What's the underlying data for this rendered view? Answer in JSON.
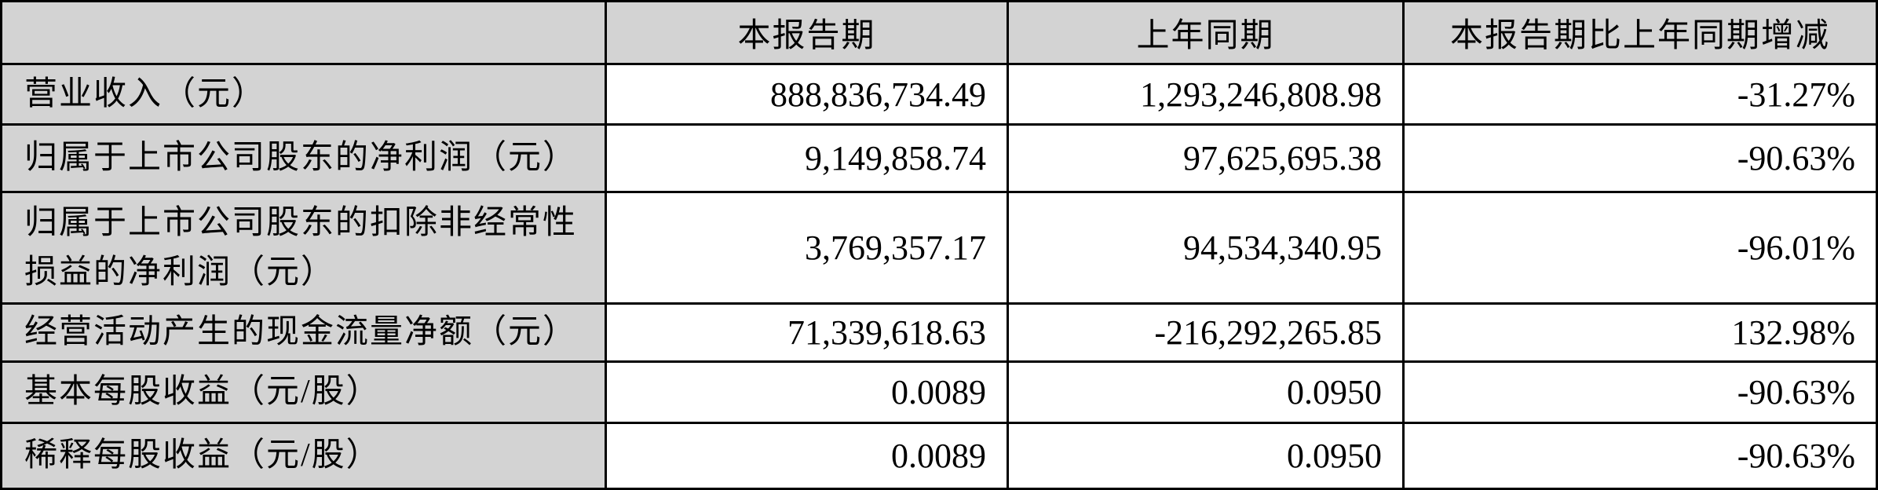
{
  "table": {
    "columns": [
      {
        "key": "label",
        "label": ""
      },
      {
        "key": "current",
        "label": "本报告期"
      },
      {
        "key": "prior",
        "label": "上年同期"
      },
      {
        "key": "change",
        "label": "本报告期比上年同期增减"
      }
    ],
    "rows": [
      {
        "label": "营业收入（元）",
        "current": "888,836,734.49",
        "prior": "1,293,246,808.98",
        "change": "-31.27%"
      },
      {
        "label": "归属于上市公司股东的净利润（元）",
        "current": "9,149,858.74",
        "prior": "97,625,695.38",
        "change": "-90.63%"
      },
      {
        "label": "归属于上市公司股东的扣除非经常性损益的净利润（元）",
        "current": "3,769,357.17",
        "prior": "94,534,340.95",
        "change": "-96.01%"
      },
      {
        "label": "经营活动产生的现金流量净额（元）",
        "current": "71,339,618.63",
        "prior": "-216,292,265.85",
        "change": "132.98%"
      },
      {
        "label": "基本每股收益（元/股）",
        "current": "0.0089",
        "prior": "0.0950",
        "change": "-90.63%"
      },
      {
        "label": "稀释每股收益（元/股）",
        "current": "0.0089",
        "prior": "0.0950",
        "change": "-90.63%"
      }
    ],
    "colors": {
      "header_bg": "#d3d3d3",
      "label_bg": "#d3d3d3",
      "cell_bg": "#ffffff",
      "border": "#000000",
      "text": "#000000"
    }
  }
}
